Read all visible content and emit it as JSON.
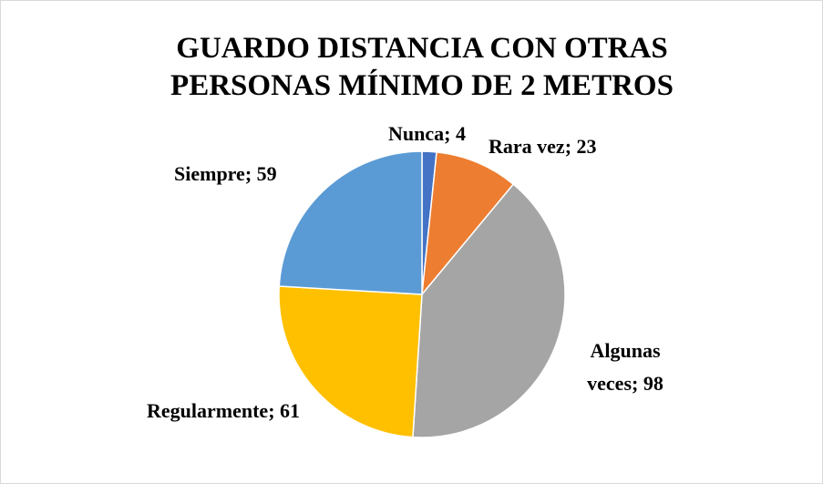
{
  "chart_data": {
    "type": "pie",
    "title": "GUARDO DISTANCIA CON OTRAS PERSONAS MÍNIMO DE 2 METROS",
    "categories": [
      "Nunca",
      "Rara vez",
      "Algunas veces",
      "Regularmente",
      "Siempre"
    ],
    "values": [
      4,
      23,
      98,
      61,
      59
    ],
    "colors": [
      "#4472c4",
      "#ed7d31",
      "#a5a5a5",
      "#ffc000",
      "#5b9bd5"
    ]
  }
}
